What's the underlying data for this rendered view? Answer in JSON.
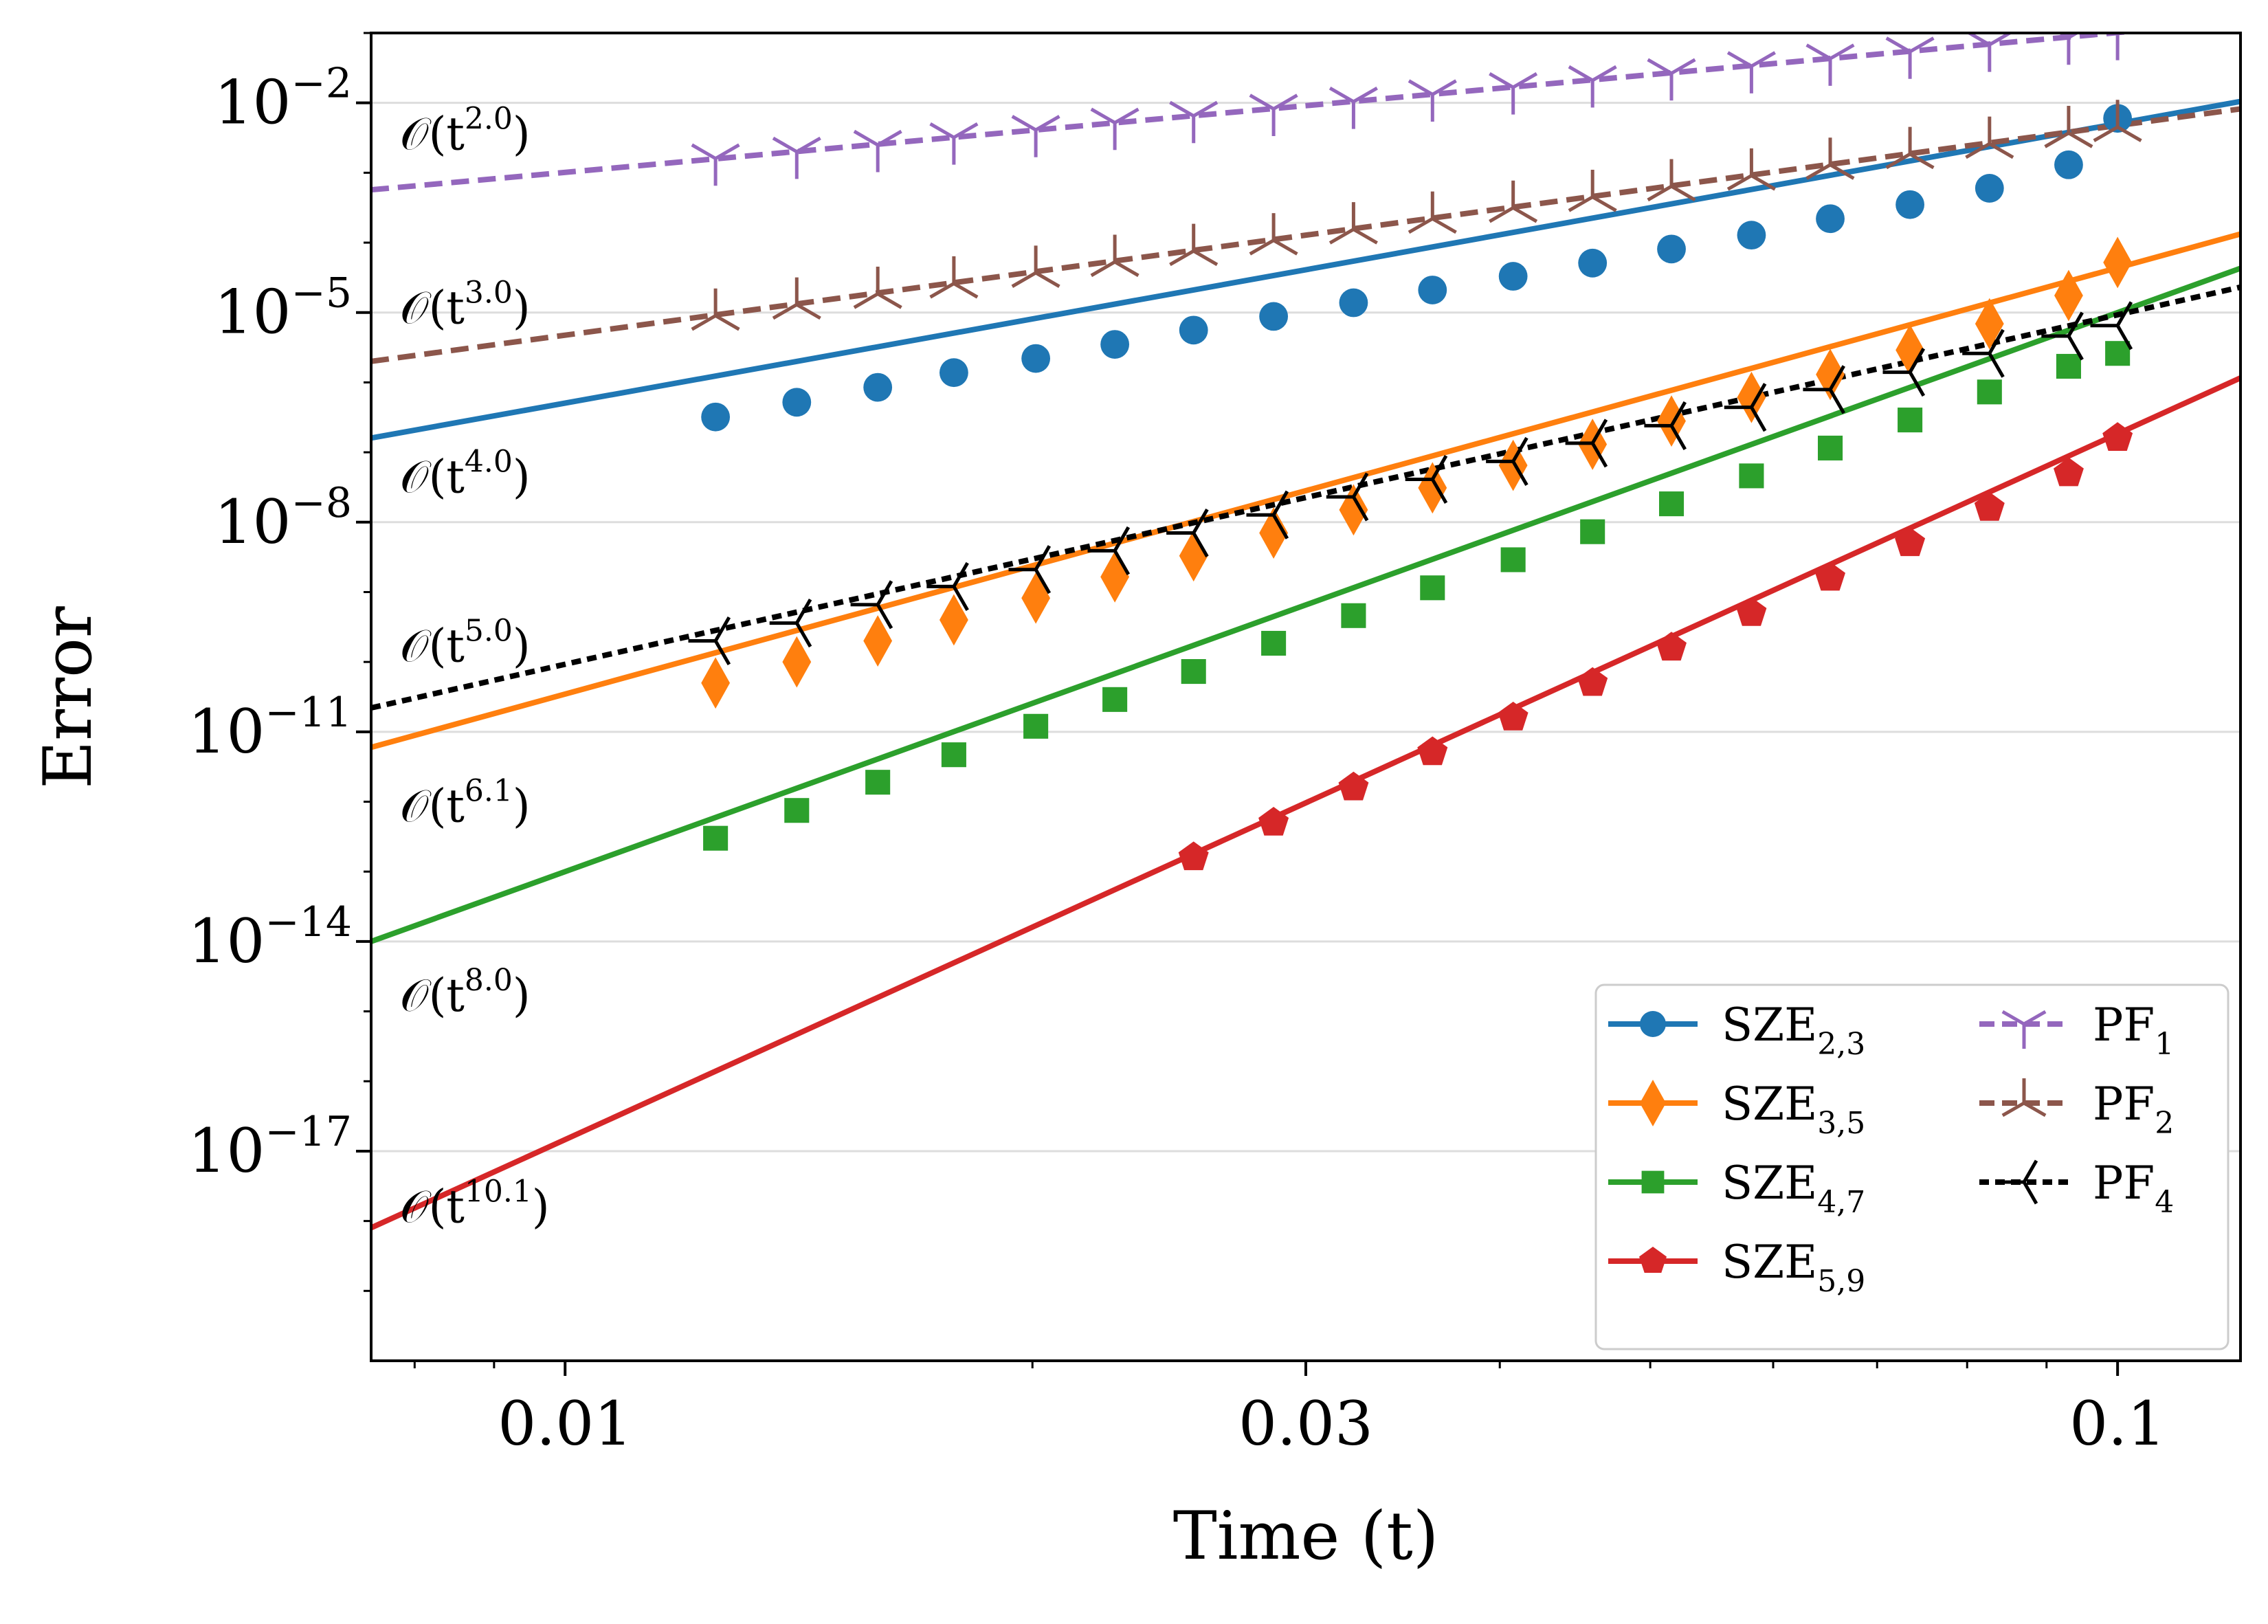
{
  "chart_data": {
    "type": "line",
    "title": "",
    "xlabel": "Time (t)",
    "ylabel": "Error",
    "xscale": "log",
    "yscale": "log",
    "xlim": [
      0.0075,
      0.12
    ],
    "ylim": [
      1e-20,
      0.1
    ],
    "grid": "horizontal",
    "legend_position": "lower right",
    "x_ticks": [
      {
        "value": 0.01,
        "label": "0.01"
      },
      {
        "value": 0.03,
        "label": "0.03"
      },
      {
        "value": 0.1,
        "label": "0.1"
      }
    ],
    "y_ticks": [
      {
        "value": 0.01,
        "base": "10",
        "exp": "−2"
      },
      {
        "value": 1e-05,
        "base": "10",
        "exp": "−5"
      },
      {
        "value": 1e-08,
        "base": "10",
        "exp": "−8"
      },
      {
        "value": 1e-11,
        "base": "10",
        "exp": "−11"
      },
      {
        "value": 1e-14,
        "base": "10",
        "exp": "−14"
      },
      {
        "value": 1e-17,
        "base": "10",
        "exp": "−17"
      }
    ],
    "series": [
      {
        "name": "SZE",
        "sub": "2,3",
        "color": "#1f77b4",
        "dash": "solid",
        "marker": "circle",
        "fit": {
          "at_xmin": 1.6e-07,
          "order": 4.0
        },
        "x": [
          0.0125,
          0.0141,
          0.0159,
          0.0178,
          0.0201,
          0.0226,
          0.0254,
          0.0286,
          0.0322,
          0.0362,
          0.0408,
          0.0459,
          0.0516,
          0.0581,
          0.0653,
          0.0735,
          0.0827,
          0.093,
          0.1
        ],
        "y": [
          3.2e-07,
          5.2e-07,
          8.5e-07,
          1.38e-06,
          2.2e-06,
          3.5e-06,
          5.6e-06,
          8.8e-06,
          1.38e-05,
          2.1e-05,
          3.3e-05,
          5.1e-05,
          8.1e-05,
          0.000128,
          0.00022,
          0.00035,
          0.0006,
          0.0013,
          0.006
        ]
      },
      {
        "name": "SZE",
        "sub": "3,5",
        "color": "#ff7f0e",
        "dash": "solid",
        "marker": "diamond",
        "fit": {
          "at_xmin": 6e-12,
          "order": 6.1
        },
        "x": [
          0.0125,
          0.0141,
          0.0159,
          0.0178,
          0.0201,
          0.0226,
          0.0254,
          0.0286,
          0.0322,
          0.0362,
          0.0408,
          0.0459,
          0.0516,
          0.0581,
          0.0653,
          0.0735,
          0.0827,
          0.093,
          0.1
        ],
        "y": [
          5e-11,
          1e-10,
          2e-10,
          4e-10,
          8.2e-10,
          1.65e-09,
          3.3e-09,
          7e-09,
          1.5e-08,
          3.1e-08,
          6.5e-08,
          1.3e-07,
          2.8e-07,
          6.1e-07,
          1.3e-06,
          2.9e-06,
          6.9e-06,
          1.75e-05,
          5.2e-05
        ]
      },
      {
        "name": "SZE",
        "sub": "4,7",
        "color": "#2ca02c",
        "dash": "solid",
        "marker": "square",
        "fit": {
          "at_xmin": 1e-14,
          "order": 8.0
        },
        "x": [
          0.0125,
          0.0141,
          0.0159,
          0.0178,
          0.0201,
          0.0226,
          0.0254,
          0.0286,
          0.0322,
          0.0362,
          0.0408,
          0.0459,
          0.0516,
          0.0581,
          0.0653,
          0.0735,
          0.0827,
          0.093,
          0.1
        ],
        "y": [
          3e-13,
          7.5e-13,
          1.9e-12,
          4.7e-12,
          1.2e-11,
          2.9e-11,
          7.3e-11,
          1.85e-10,
          4.6e-10,
          1.15e-09,
          2.9e-09,
          7.3e-09,
          1.83e-08,
          4.6e-08,
          1.15e-07,
          2.9e-07,
          7.3e-07,
          1.7e-06,
          2.6e-06
        ]
      },
      {
        "name": "SZE",
        "sub": "5,9",
        "color": "#d62728",
        "dash": "solid",
        "marker": "pentagon",
        "fit": {
          "at_xmin": 8e-19,
          "order": 10.1
        },
        "x": [
          0.0254,
          0.0286,
          0.0322,
          0.0362,
          0.0408,
          0.0459,
          0.0516,
          0.0581,
          0.0653,
          0.0735,
          0.0827,
          0.093,
          0.1
        ],
        "y": [
          1.6e-13,
          5e-13,
          1.6e-12,
          5.1e-12,
          1.6e-11,
          5e-11,
          1.6e-10,
          5e-10,
          1.6e-09,
          5e-09,
          1.6e-08,
          5e-08,
          1.6e-07
        ]
      },
      {
        "name": "PF",
        "sub": "1",
        "color": "#9467bd",
        "dash": "dash",
        "marker": "tri_down",
        "fit": {
          "at_xmin": 0.00057,
          "order": 2.0
        },
        "x": [
          0.0125,
          0.0141,
          0.0159,
          0.0178,
          0.0201,
          0.0226,
          0.0254,
          0.0286,
          0.0322,
          0.0362,
          0.0408,
          0.0459,
          0.0516,
          0.0581,
          0.0653,
          0.0735,
          0.0827,
          0.093,
          0.1
        ],
        "y": [
          0.0016,
          0.002,
          0.0025,
          0.0032,
          0.0041,
          0.0052,
          0.0065,
          0.0082,
          0.0104,
          0.0132,
          0.0167,
          0.021,
          0.0265,
          0.0335,
          0.043,
          0.054,
          0.068,
          0.086,
          0.1
        ]
      },
      {
        "name": "PF",
        "sub": "2",
        "color": "#8c564b",
        "dash": "dash",
        "marker": "tri_up",
        "fit": {
          "at_xmin": 2e-06,
          "order": 3.0
        },
        "x": [
          0.0125,
          0.0141,
          0.0159,
          0.0178,
          0.0201,
          0.0226,
          0.0254,
          0.0286,
          0.0322,
          0.0362,
          0.0408,
          0.0459,
          0.0516,
          0.0581,
          0.0653,
          0.0735,
          0.0827,
          0.093,
          0.1
        ],
        "y": [
          9e-06,
          1.3e-05,
          1.85e-05,
          2.6e-05,
          3.7e-05,
          5.3e-05,
          7.6e-05,
          0.000108,
          0.000155,
          0.00022,
          0.000315,
          0.00045,
          0.00064,
          0.00091,
          0.0013,
          0.00185,
          0.0026,
          0.0037,
          0.0045
        ]
      },
      {
        "name": "PF",
        "sub": "4",
        "color": "#000000",
        "dash": "dot",
        "marker": "tri_left",
        "fit": {
          "at_xmin": 2.2e-11,
          "order": 5.0
        },
        "x": [
          0.0125,
          0.0141,
          0.0159,
          0.0178,
          0.0201,
          0.0226,
          0.0254,
          0.0286,
          0.0322,
          0.0362,
          0.0408,
          0.0459,
          0.0516,
          0.0581,
          0.0653,
          0.0735,
          0.0827,
          0.093,
          0.1
        ],
        "y": [
          2e-10,
          3.6e-10,
          6.6e-10,
          1.2e-09,
          2.1e-09,
          3.9e-09,
          7e-09,
          1.27e-08,
          2.3e-08,
          4.1e-08,
          7.4e-08,
          1.35e-07,
          2.4e-07,
          4.4e-07,
          7.9e-07,
          1.4e-06,
          2.6e-06,
          4.6e-06,
          6.5e-06
        ]
      }
    ],
    "annotations": [
      {
        "prefix": "𝒪(t",
        "exp": "2.0",
        "suffix": ")",
        "y": 0.0034
      },
      {
        "prefix": "𝒪(t",
        "exp": "3.0",
        "suffix": ")",
        "y": 1.1e-05
      },
      {
        "prefix": "𝒪(t",
        "exp": "4.0",
        "suffix": ")",
        "y": 4.2e-08
      },
      {
        "prefix": "𝒪(t",
        "exp": "5.0",
        "suffix": ")",
        "y": 1.6e-10
      },
      {
        "prefix": "𝒪(t",
        "exp": "6.1",
        "suffix": ")",
        "y": 8.2e-13
      },
      {
        "prefix": "𝒪(t",
        "exp": "8.0",
        "suffix": ")",
        "y": 1.6e-15
      },
      {
        "prefix": "𝒪(t",
        "exp": "10.1",
        "suffix": ")",
        "y": 1.5e-18
      }
    ]
  }
}
